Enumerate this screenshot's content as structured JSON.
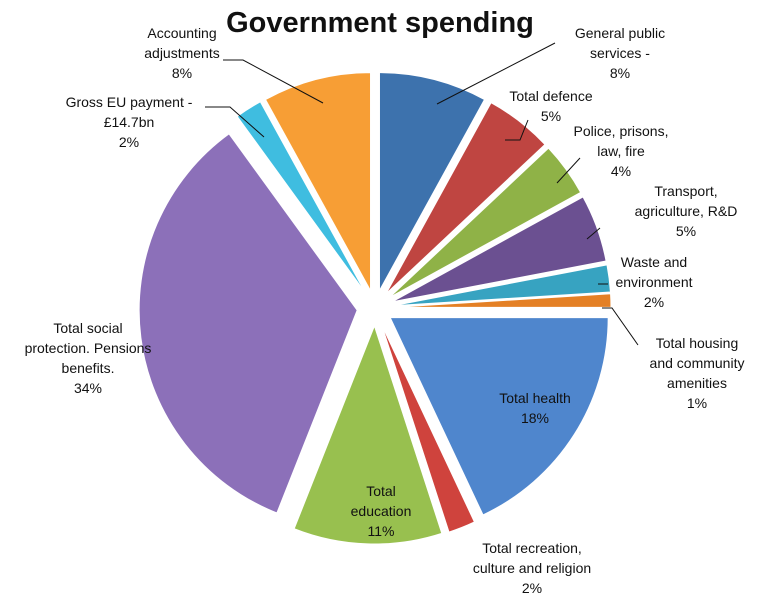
{
  "chart_data": {
    "type": "pie",
    "title": "Government spending",
    "legend": "none",
    "slices": [
      {
        "lines": [
          "General public",
          "services -",
          "8%"
        ],
        "value": 8,
        "color": "#3d72ad"
      },
      {
        "lines": [
          "Total defence",
          "5%"
        ],
        "value": 5,
        "color": "#bf4541"
      },
      {
        "lines": [
          "Police, prisons,",
          "law, fire",
          "4%"
        ],
        "value": 4,
        "color": "#8fb247"
      },
      {
        "lines": [
          "Transport,",
          "agriculture, R&D",
          "5%"
        ],
        "value": 5,
        "color": "#6b5091"
      },
      {
        "lines": [
          "Waste and",
          "environment",
          "2%"
        ],
        "value": 2,
        "color": "#37a3c1"
      },
      {
        "lines": [
          "Total housing",
          "and community",
          "amenities",
          "1%"
        ],
        "value": 1,
        "color": "#e48025"
      },
      {
        "lines": [
          "Total health",
          "18%"
        ],
        "value": 18,
        "color": "#4f86cd"
      },
      {
        "lines": [
          "Total recreation,",
          "culture and religion",
          "2%"
        ],
        "value": 2,
        "color": "#cf433d"
      },
      {
        "lines": [
          "Total",
          "education",
          "11%"
        ],
        "value": 11,
        "color": "#98c04f"
      },
      {
        "lines": [
          "Total social",
          "protection. Pensions",
          "benefits.",
          "34%"
        ],
        "value": 34,
        "color": "#8c70b9"
      },
      {
        "lines": [
          "Gross EU payment -",
          "£14.7bn",
          "2%"
        ],
        "value": 2,
        "color": "#3fbde0"
      },
      {
        "lines": [
          "Accounting",
          "adjustments",
          "8%"
        ],
        "value": 8,
        "color": "#f79e35"
      }
    ]
  }
}
